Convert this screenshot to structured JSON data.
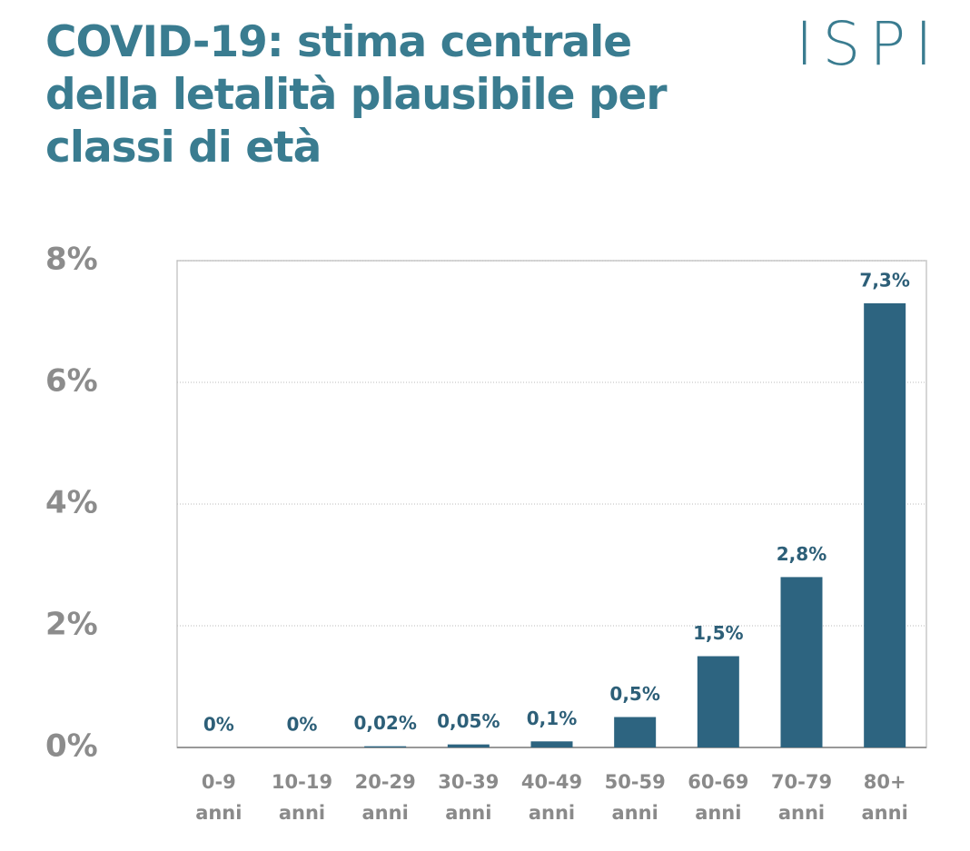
{
  "chart_data": {
    "type": "bar",
    "title": "COVID-19: stima centrale della letalità plausibile per classi di età",
    "logo": "ISPI",
    "categories": [
      "0-9 anni",
      "10-19 anni",
      "20-29 anni",
      "30-39 anni",
      "40-49 anni",
      "50-59 anni",
      "60-69 anni",
      "70-79 anni",
      "80+ anni"
    ],
    "values": [
      0,
      0,
      0.02,
      0.05,
      0.1,
      0.5,
      1.5,
      2.8,
      7.3
    ],
    "value_labels": [
      "0%",
      "0%",
      "0,02%",
      "0,05%",
      "0,1%",
      "0,5%",
      "1,5%",
      "2,8%",
      "7,3%"
    ],
    "color": "#2d6480",
    "ylim": [
      0,
      8
    ],
    "yticks": [
      {
        "value": 0,
        "label": "0%"
      },
      {
        "value": 2,
        "label": "2%"
      },
      {
        "value": 4,
        "label": "4%"
      },
      {
        "value": 6,
        "label": "6%"
      },
      {
        "value": 8,
        "label": "8%"
      }
    ],
    "grid": true
  }
}
